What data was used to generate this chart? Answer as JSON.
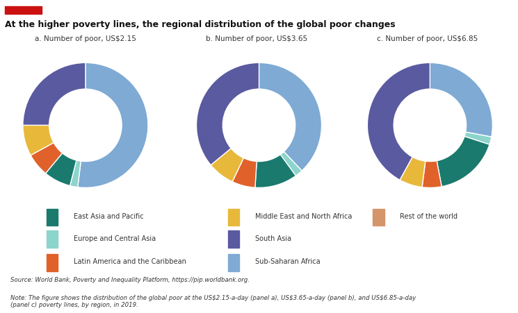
{
  "title": "At the higher poverty lines, the regional distribution of the global poor changes",
  "panels": [
    {
      "label": "a. Number of poor, US$2.15",
      "values": [
        52.0,
        2.0,
        7.0,
        6.0,
        8.0,
        25.0
      ],
      "startangle": 90
    },
    {
      "label": "b. Number of poor, US$3.65",
      "values": [
        38.0,
        2.0,
        11.0,
        6.0,
        7.0,
        36.0
      ],
      "startangle": 90
    },
    {
      "label": "c. Number of poor, US$6.85",
      "values": [
        28.0,
        2.0,
        17.0,
        5.0,
        6.0,
        42.0
      ],
      "startangle": 90
    }
  ],
  "segment_order": [
    "Sub-Saharan Africa",
    "Europe and Central Asia",
    "East Asia and Pacific",
    "Latin America and the Caribbean",
    "Middle East and North Africa",
    "South Asia"
  ],
  "colors": [
    "#7eaad4",
    "#8dd4cc",
    "#1a7a6e",
    "#e0612a",
    "#e8b83a",
    "#5a5aa0"
  ],
  "region_labels": [
    "East Asia and Pacific",
    "Europe and Central Asia",
    "Latin America and the Caribbean",
    "Middle East and North Africa",
    "South Asia",
    "Sub-Saharan Africa"
  ],
  "legend_colors": [
    "#1a7a6e",
    "#8dd4cc",
    "#e0612a",
    "#e8b83a",
    "#5a5aa0",
    "#7eaad4"
  ],
  "rest_of_world_label": "Rest of the world",
  "rest_of_world_color": "#d4956a",
  "source_text": "Source: World Bank, Poverty and Inequality Platform, https://pip.worldbank.org.",
  "note_text": "Note: The figure shows the distribution of the global poor at the US$2.15-a-day (panel a), US$3.65-a-day (panel b), and US$6.85-a-day\n(panel c) poverty lines, by region, in 2019.",
  "bg_color": "#ffffff",
  "wedge_edge_color": "#ffffff",
  "donut_width": 0.42,
  "title_fontsize": 9.0,
  "panel_label_fontsize": 7.5,
  "legend_fontsize": 7.0,
  "source_fontsize": 6.2
}
